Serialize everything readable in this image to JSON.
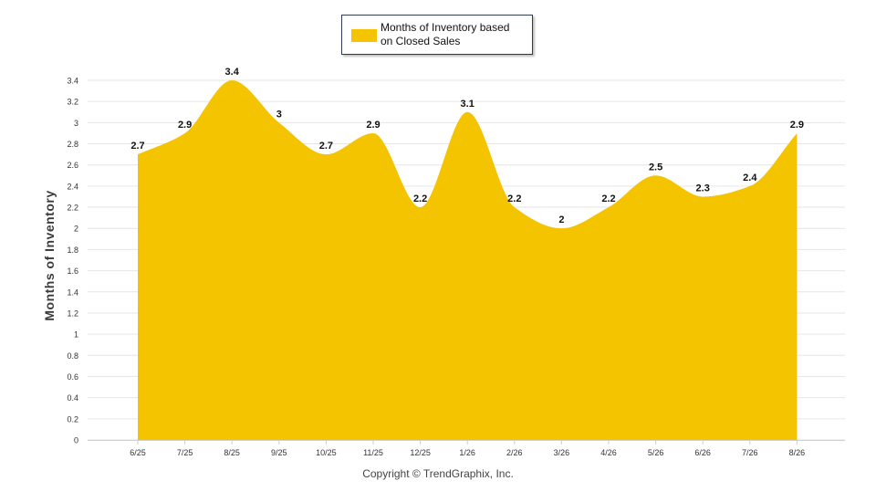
{
  "chart_data": {
    "type": "area",
    "categories": [
      "6/25",
      "7/25",
      "8/25",
      "9/25",
      "10/25",
      "11/25",
      "12/25",
      "1/26",
      "2/26",
      "3/26",
      "4/26",
      "5/26",
      "6/26",
      "7/26",
      "8/26"
    ],
    "series": [
      {
        "name": "Months of Inventory based on Closed Sales",
        "values": [
          2.7,
          2.9,
          3.4,
          3,
          2.7,
          2.9,
          2.2,
          3.1,
          2.2,
          2,
          2.2,
          2.5,
          2.3,
          2.4,
          2.9
        ],
        "data_labels": [
          "2.7",
          "2.9",
          "3.4",
          "3",
          "2.7",
          "2.9",
          "2.2",
          "3.1",
          "2.2",
          "2",
          "2.2",
          "2.5",
          "2.3",
          "2.4",
          "2.9"
        ]
      }
    ],
    "ylabel": "Months of Inventory",
    "ylim": [
      0,
      3.4
    ],
    "yticks": [
      "0",
      "0.2",
      "0.4",
      "0.6",
      "0.8",
      "1",
      "1.2",
      "1.4",
      "1.6",
      "1.8",
      "2",
      "2.2",
      "2.4",
      "2.6",
      "2.8",
      "3",
      "3.2",
      "3.4"
    ],
    "grid": true,
    "legend": {
      "position": "top-center",
      "label_line1": "Months of Inventory based",
      "label_line2": "on Closed Sales"
    },
    "colors": {
      "fill": "#F5C400",
      "grid": "#e6e6e6",
      "axis_text": "#333333"
    }
  },
  "footer": {
    "copyright": "Copyright © TrendGraphix, Inc."
  }
}
